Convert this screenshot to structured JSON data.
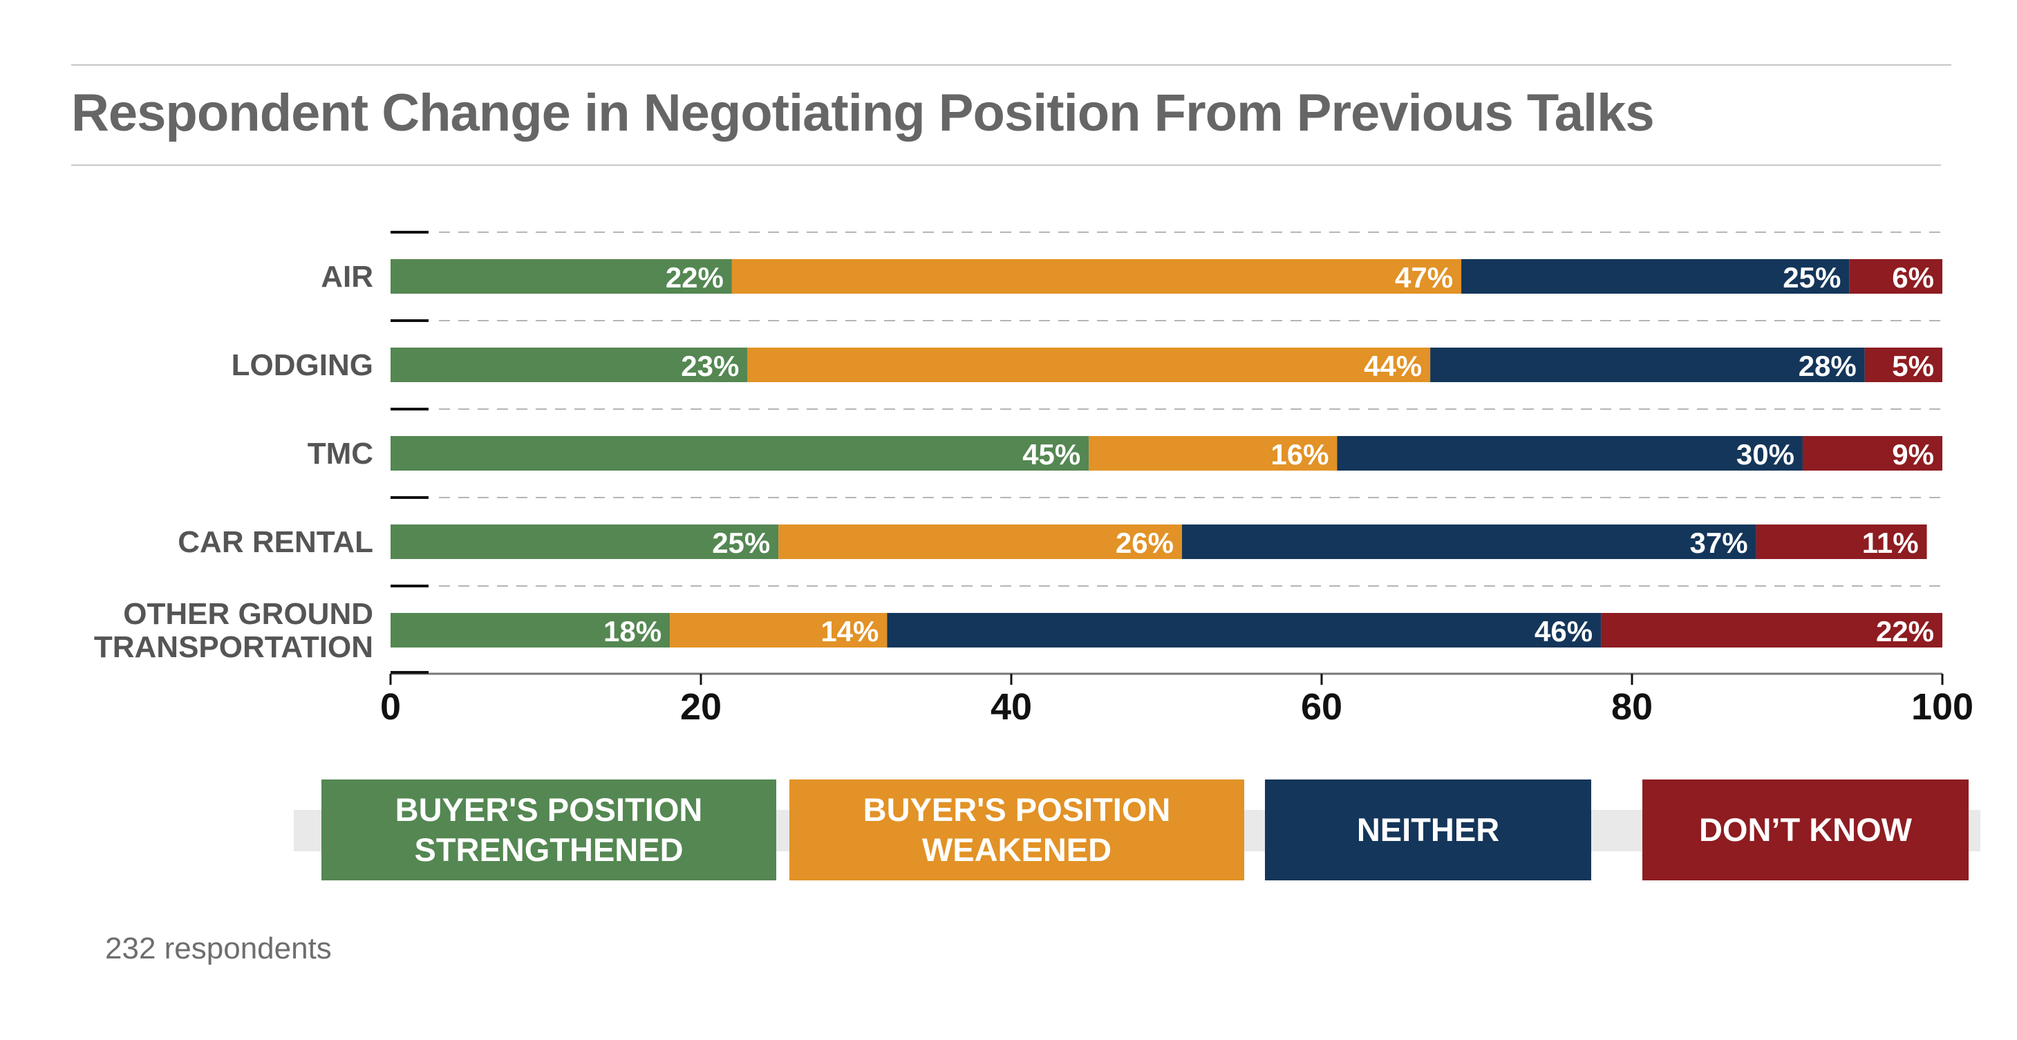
{
  "chart_data": {
    "type": "bar",
    "orientation": "horizontal",
    "stacked": true,
    "title": "Respondent Change in Negotiating Position From Previous Talks",
    "categories": [
      "AIR",
      "LODGING",
      "TMC",
      "CAR RENTAL",
      "OTHER GROUND TRANSPORTATION"
    ],
    "series": [
      {
        "name": "BUYER'S POSITION STRENGTHENED",
        "color": "#548752",
        "values": [
          22,
          23,
          45,
          25,
          18
        ]
      },
      {
        "name": "BUYER'S POSITION WEAKENED",
        "color": "#e29226",
        "values": [
          47,
          44,
          16,
          26,
          14
        ]
      },
      {
        "name": "NEITHER",
        "color": "#14365a",
        "values": [
          25,
          28,
          30,
          37,
          46
        ]
      },
      {
        "name": "DON’T KNOW",
        "color": "#8e1c21",
        "values": [
          6,
          5,
          9,
          11,
          22
        ]
      }
    ],
    "data_labels": [
      [
        "22%",
        "47%",
        "25%",
        "6%"
      ],
      [
        "23%",
        "44%",
        "28%",
        "5%"
      ],
      [
        "45%",
        "16%",
        "30%",
        "9%"
      ],
      [
        "25%",
        "26%",
        "37%",
        "11%"
      ],
      [
        "18%",
        "14%",
        "46%",
        "22%"
      ]
    ],
    "category_label_lines": [
      [
        "AIR"
      ],
      [
        "LODGING"
      ],
      [
        "TMC"
      ],
      [
        "CAR RENTAL"
      ],
      [
        "OTHER GROUND",
        "TRANSPORTATION"
      ]
    ],
    "xlim": [
      0,
      100
    ],
    "xticks": [
      0,
      20,
      40,
      60,
      80,
      100
    ],
    "xtick_labels": [
      "0",
      "20",
      "40",
      "60",
      "80",
      "100"
    ],
    "grid": "dashed horizontal separators",
    "legend_position": "bottom",
    "xlabel": "",
    "ylabel": ""
  },
  "footnote": "232 respondents"
}
